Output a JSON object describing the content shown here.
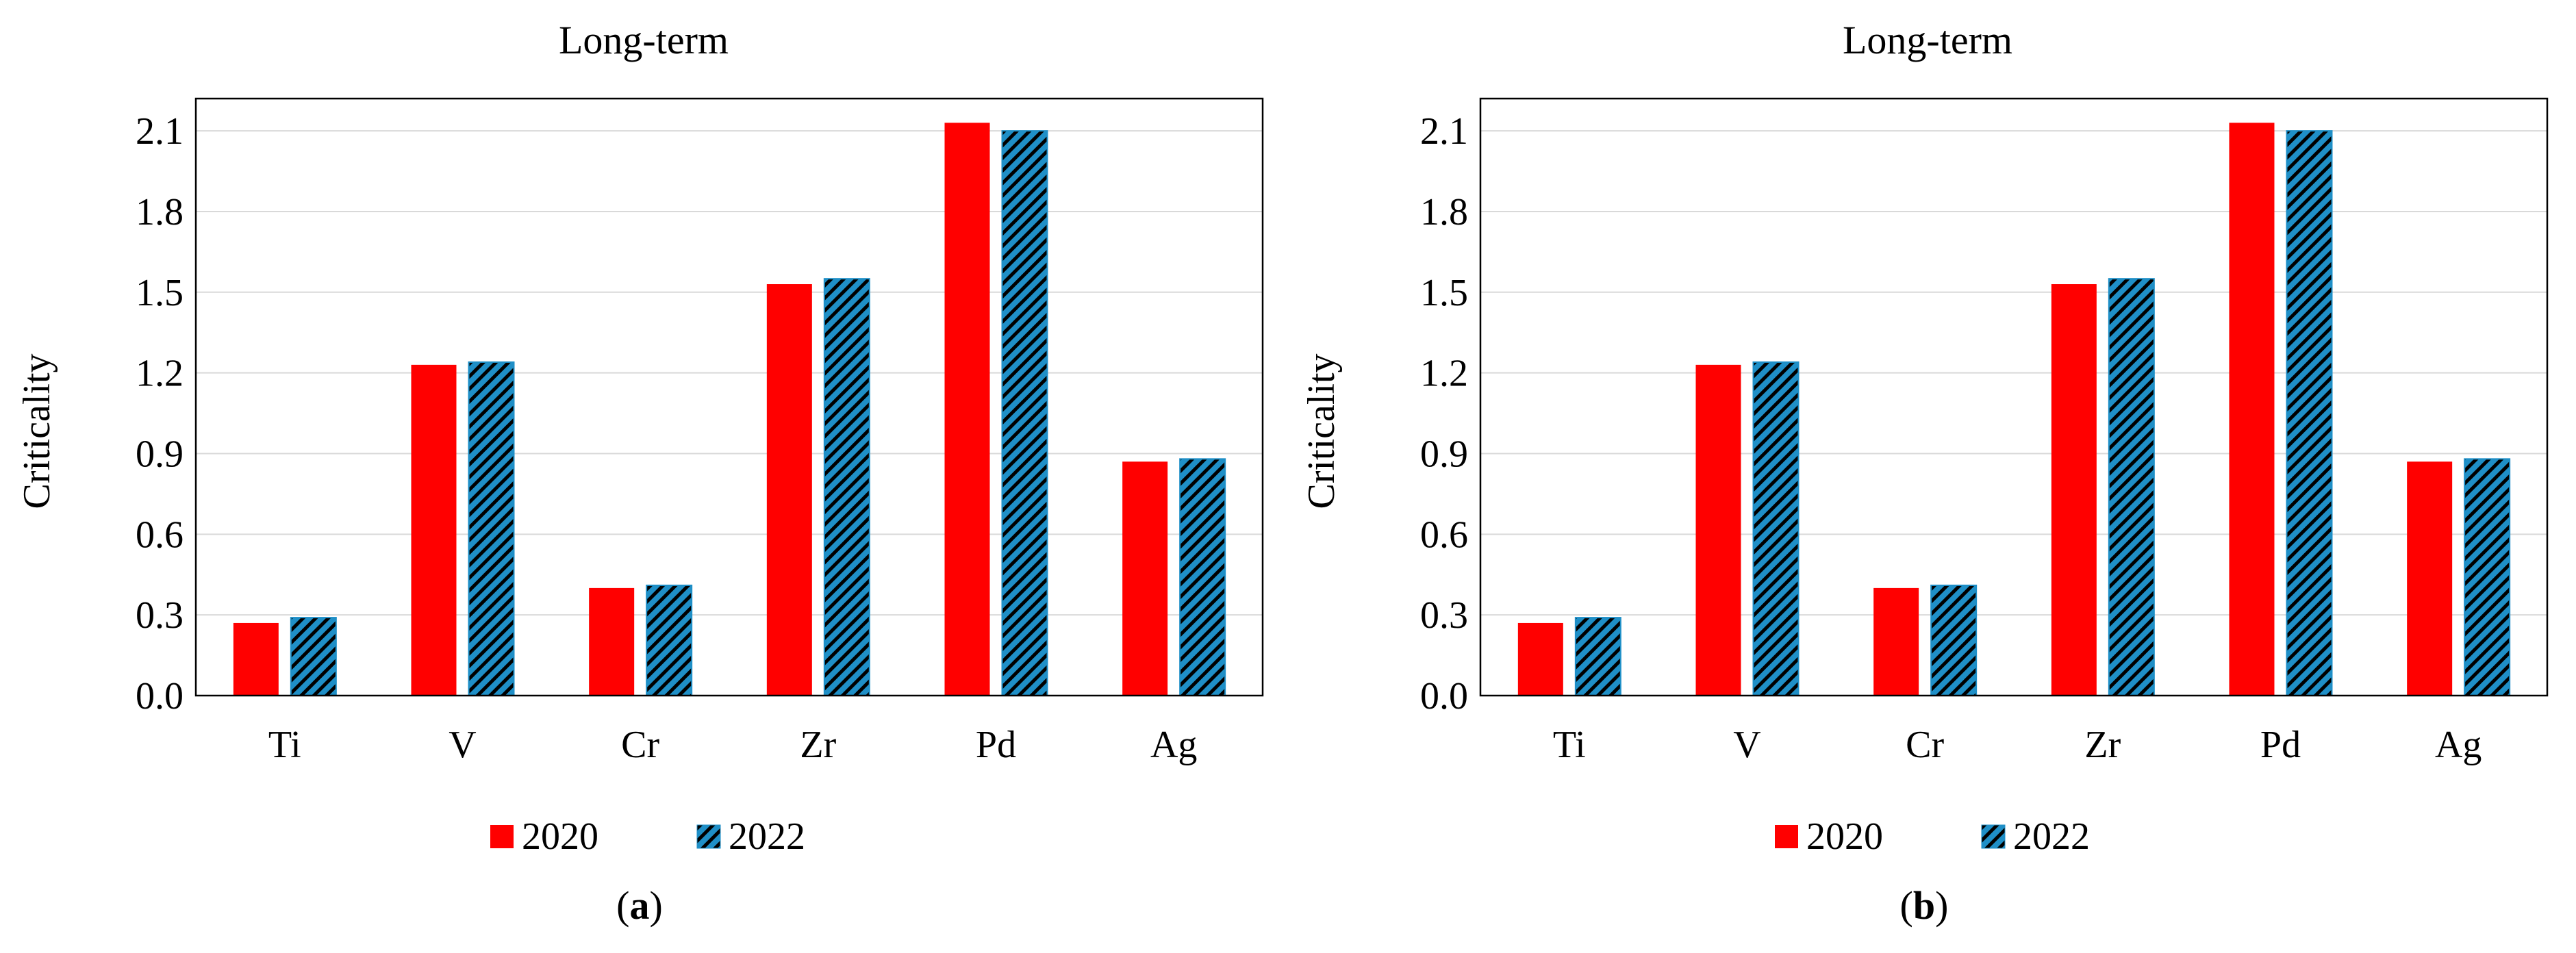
{
  "colors": {
    "series_2020": "#ff0000",
    "series_2022_fill": "#1f8fc7",
    "series_2022_hatch": "#000000",
    "gridline": "#d9d9d9",
    "axis": "#000000"
  },
  "chart_data": [
    {
      "panel_label": "a",
      "type": "bar",
      "title": "Long-term",
      "xlabel": "",
      "ylabel": "Criticality",
      "ylim": [
        0,
        2.22
      ],
      "yticks": [
        "0.0",
        "0.3",
        "0.6",
        "0.9",
        "1.2",
        "1.5",
        "1.8",
        "2.1"
      ],
      "grid": true,
      "legend_position": "bottom",
      "categories": [
        "Ti",
        "V",
        "Cr",
        "Zr",
        "Pd",
        "Ag"
      ],
      "series": [
        {
          "name": "2020",
          "values": [
            0.27,
            1.23,
            0.4,
            1.53,
            2.13,
            0.87
          ]
        },
        {
          "name": "2022",
          "values": [
            0.29,
            1.24,
            0.41,
            1.55,
            2.1,
            0.88
          ]
        }
      ]
    },
    {
      "panel_label": "b",
      "type": "bar",
      "title": "Long-term",
      "xlabel": "",
      "ylabel": "Criticality",
      "ylim": [
        0,
        2.22
      ],
      "yticks": [
        "0.0",
        "0.3",
        "0.6",
        "0.9",
        "1.2",
        "1.5",
        "1.8",
        "2.1"
      ],
      "grid": true,
      "legend_position": "bottom",
      "categories": [
        "Ti",
        "V",
        "Cr",
        "Zr",
        "Pd",
        "Ag"
      ],
      "series": [
        {
          "name": "2020",
          "values": [
            0.27,
            1.23,
            0.4,
            1.53,
            2.13,
            0.87
          ]
        },
        {
          "name": "2022",
          "values": [
            0.29,
            1.24,
            0.41,
            1.55,
            2.1,
            0.88
          ]
        }
      ]
    }
  ]
}
